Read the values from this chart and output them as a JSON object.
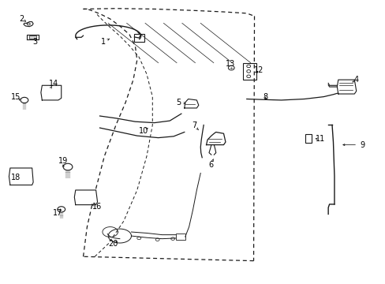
{
  "bg_color": "#ffffff",
  "fig_width": 4.89,
  "fig_height": 3.6,
  "dpi": 100,
  "image_data": "target_diagram"
}
